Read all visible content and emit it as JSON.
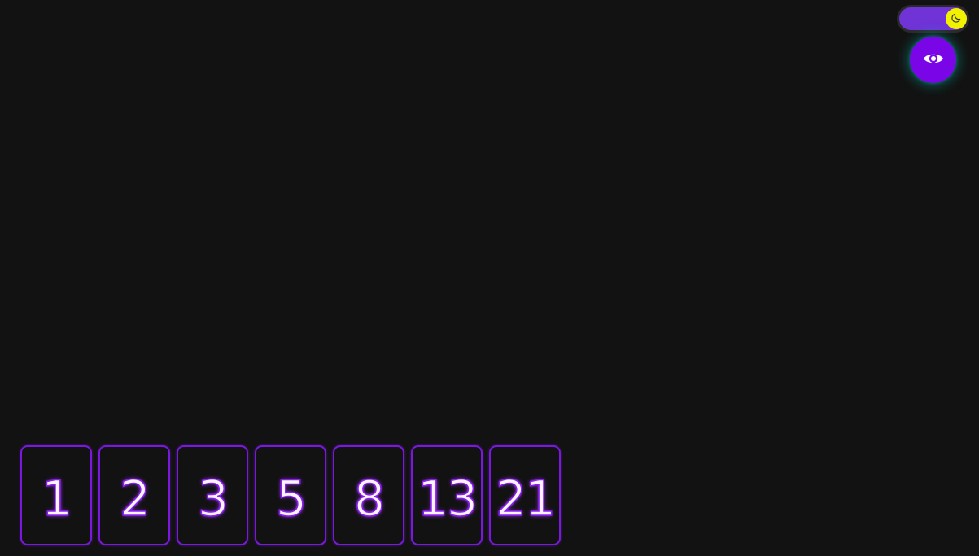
{
  "theme_toggle": {
    "icon": "moon-icon",
    "track_color": "#6f33d6",
    "knob_color": "#f2f200",
    "mode": "dark"
  },
  "reveal_button": {
    "icon": "eye-icon",
    "color": "#7a06e8",
    "glow_color": "#00c8be"
  },
  "cards": {
    "border_color": "#7a19dd",
    "values": [
      "1",
      "2",
      "3",
      "5",
      "8",
      "13",
      "21"
    ]
  }
}
